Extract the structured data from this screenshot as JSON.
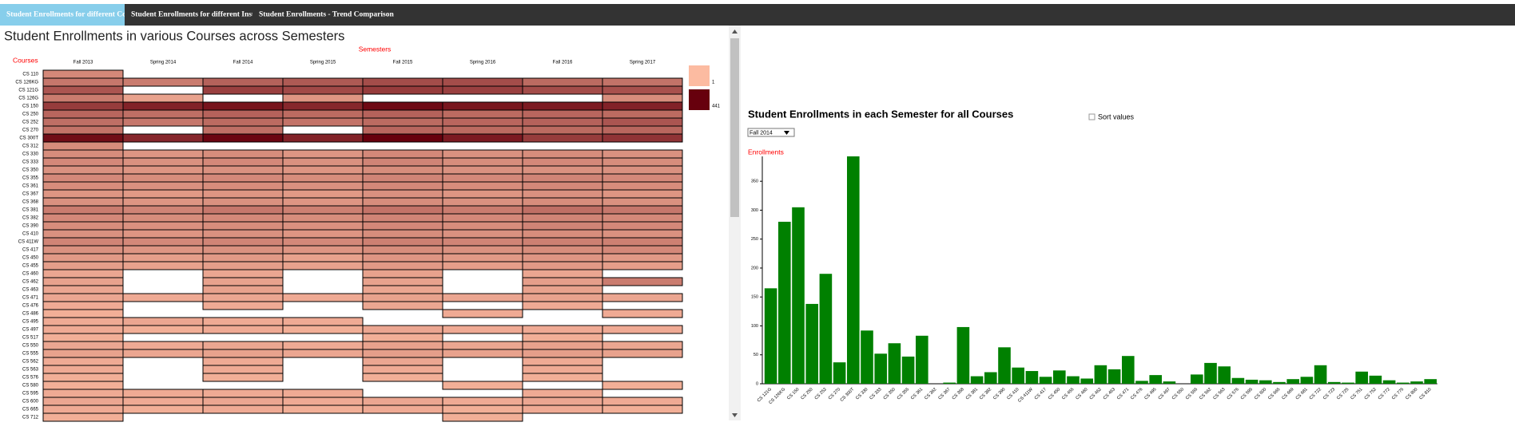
{
  "nav": {
    "tabs": [
      "Student Enrollments for different Courses",
      "Student Enrollments for different Instructors",
      "Student Enrollments - Trend Comparison"
    ],
    "active": 0
  },
  "chart_data": [
    {
      "type": "heatmap",
      "title": "Student Enrollments in various Courses across Semesters",
      "xlabel": "Semesters",
      "ylabel": "Courses",
      "semesters": [
        "Fall 2013",
        "Spring 2014",
        "Fall 2014",
        "Spring 2015",
        "Fall 2015",
        "Spring 2016",
        "Fall 2016",
        "Spring 2017"
      ],
      "courses": [
        "CS 110",
        "CS 126KG",
        "CS 121G",
        "CS 126G",
        "CS 150",
        "CS 250",
        "CS 252",
        "CS 270",
        "CS 300T",
        "CS 312",
        "CS 330",
        "CS 333",
        "CS 350",
        "CS 355",
        "CS 361",
        "CS 367",
        "CS 368",
        "CS 381",
        "CS 382",
        "CS 390",
        "CS 410",
        "CS 411W",
        "CS 417",
        "CS 450",
        "CS 455",
        "CS 460",
        "CS 462",
        "CS 463",
        "CS 471",
        "CS 476",
        "CS 486",
        "CS 495",
        "CS 497",
        "CS 517",
        "CS 550",
        "CS 555",
        "CS 562",
        "CS 563",
        "CS 576",
        "CS 580",
        "CS 595",
        "CS 600",
        "CS 665",
        "CS 712"
      ],
      "values": [
        [
          120,
          null,
          null,
          null,
          null,
          null,
          null,
          null
        ],
        [
          160,
          150,
          210,
          230,
          260,
          260,
          190,
          170
        ],
        [
          240,
          null,
          290,
          270,
          300,
          290,
          260,
          250
        ],
        [
          150,
          60,
          null,
          90,
          null,
          null,
          null,
          110
        ],
        [
          300,
          360,
          393,
          350,
          420,
          390,
          380,
          360
        ],
        [
          200,
          180,
          210,
          190,
          210,
          190,
          200,
          190
        ],
        [
          180,
          160,
          190,
          170,
          190,
          200,
          210,
          240
        ],
        [
          170,
          null,
          180,
          null,
          200,
          190,
          190,
          200
        ],
        [
          410,
          350,
          430,
          360,
          441,
          380,
          300,
          320
        ],
        [
          110,
          null,
          null,
          null,
          null,
          null,
          null,
          null
        ],
        [
          110,
          90,
          110,
          90,
          120,
          100,
          110,
          100
        ],
        [
          120,
          100,
          120,
          100,
          130,
          110,
          120,
          110
        ],
        [
          100,
          90,
          100,
          90,
          110,
          100,
          100,
          100
        ],
        [
          120,
          110,
          120,
          110,
          130,
          120,
          130,
          120
        ],
        [
          110,
          100,
          110,
          100,
          120,
          110,
          120,
          110
        ],
        [
          90,
          80,
          90,
          80,
          100,
          90,
          100,
          90
        ],
        [
          100,
          90,
          100,
          90,
          110,
          100,
          110,
          100
        ],
        [
          150,
          130,
          160,
          140,
          170,
          150,
          180,
          160
        ],
        [
          120,
          110,
          120,
          110,
          130,
          120,
          130,
          120
        ],
        [
          110,
          100,
          110,
          100,
          120,
          110,
          130,
          120
        ],
        [
          100,
          90,
          100,
          90,
          110,
          100,
          110,
          100
        ],
        [
          130,
          120,
          130,
          120,
          140,
          130,
          140,
          140
        ],
        [
          100,
          90,
          100,
          90,
          110,
          100,
          110,
          120
        ],
        [
          80,
          70,
          80,
          60,
          90,
          80,
          90,
          80
        ],
        [
          70,
          60,
          70,
          60,
          80,
          70,
          80,
          70
        ],
        [
          50,
          null,
          50,
          null,
          60,
          null,
          50,
          null
        ],
        [
          60,
          null,
          60,
          null,
          60,
          null,
          70,
          150
        ],
        [
          50,
          null,
          60,
          null,
          50,
          null,
          60,
          null
        ],
        [
          50,
          40,
          50,
          40,
          60,
          50,
          60,
          50
        ],
        [
          40,
          null,
          40,
          null,
          50,
          null,
          40,
          null
        ],
        [
          30,
          null,
          null,
          null,
          null,
          40,
          null,
          40
        ],
        [
          40,
          50,
          40,
          40,
          null,
          null,
          null,
          null
        ],
        [
          40,
          30,
          40,
          30,
          50,
          40,
          40,
          40
        ],
        [
          30,
          null,
          null,
          null,
          30,
          null,
          30,
          null
        ],
        [
          50,
          40,
          50,
          40,
          60,
          50,
          60,
          50
        ],
        [
          60,
          50,
          60,
          50,
          70,
          60,
          70,
          60
        ],
        [
          40,
          null,
          40,
          null,
          50,
          null,
          40,
          null
        ],
        [
          40,
          null,
          40,
          null,
          40,
          null,
          40,
          null
        ],
        [
          30,
          null,
          30,
          null,
          30,
          null,
          30,
          null
        ],
        [
          30,
          null,
          null,
          null,
          null,
          30,
          null,
          30
        ],
        [
          40,
          40,
          40,
          40,
          null,
          null,
          40,
          null
        ],
        [
          50,
          40,
          50,
          40,
          50,
          40,
          50,
          40
        ],
        [
          40,
          30,
          40,
          30,
          40,
          30,
          40,
          30
        ],
        [
          30,
          null,
          null,
          null,
          null,
          30,
          null,
          null
        ]
      ],
      "colorbar": {
        "ticks": [
          1,
          441
        ],
        "colors": [
          "#fcbba1",
          "#67000d"
        ]
      }
    },
    {
      "type": "bar",
      "title": "Student Enrollments in each Semester for all Courses",
      "selected": "Fall 2014",
      "sort_label": "Sort values",
      "ylabel": "Enrollments",
      "categories": [
        "CS 121G",
        "CS 126KG",
        "CS 150",
        "CS 250",
        "CS 252",
        "CS 270",
        "CS 300T",
        "CS 330",
        "CS 333",
        "CS 350",
        "CS 355",
        "CS 361",
        "CS 362",
        "CS 367",
        "CS 368",
        "CS 381",
        "CS 382",
        "CS 390",
        "CS 410",
        "CS 411W",
        "CS 417",
        "CS 450",
        "CS 455",
        "CS 460",
        "CS 462",
        "CS 463",
        "CS 471",
        "CS 476",
        "CS 495",
        "CS 497",
        "CS 550",
        "CS 555",
        "CS 562",
        "CS 563",
        "CS 576",
        "CS 595",
        "CS 600",
        "CS 665",
        "CS 669",
        "CS 681",
        "CS 722",
        "CS 723",
        "CS 725",
        "CS 751",
        "CS 752",
        "CS 772",
        "CS 775",
        "CS 800",
        "CS 810"
      ],
      "values": [
        165,
        280,
        305,
        138,
        190,
        37,
        393,
        92,
        52,
        70,
        47,
        83,
        0,
        2,
        98,
        13,
        20,
        63,
        28,
        22,
        12,
        23,
        13,
        9,
        32,
        25,
        48,
        5,
        15,
        4,
        0,
        16,
        36,
        30,
        10,
        7,
        6,
        3,
        8,
        12,
        32,
        3,
        2,
        21,
        14,
        6,
        2,
        4,
        8
      ],
      "color": "#008000",
      "ylim": [
        0,
        393
      ],
      "yticks": [
        0,
        50,
        100,
        150,
        200,
        250,
        300,
        350
      ]
    }
  ]
}
